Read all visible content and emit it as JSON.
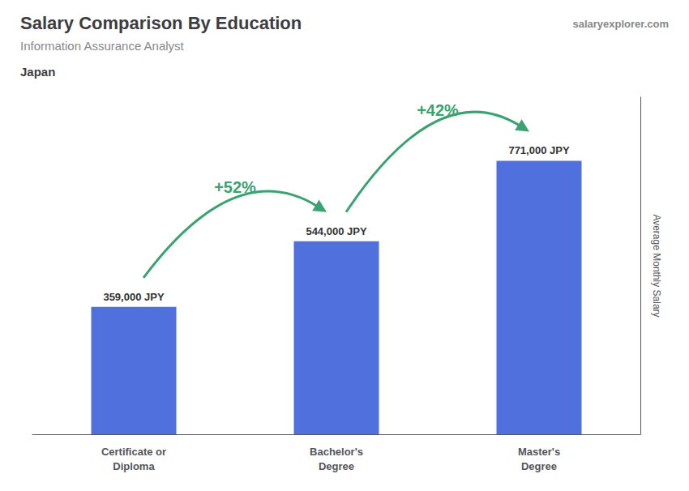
{
  "chart_data": {
    "type": "bar",
    "title": "Salary Comparison By Education",
    "subtitle": "Information Assurance Analyst",
    "country": "Japan",
    "watermark": "salaryexplorer.com",
    "ylabel": "Average Monthly Salary",
    "categories": [
      "Certificate or\nDiploma",
      "Bachelor's\nDegree",
      "Master's\nDegree"
    ],
    "values": [
      359000,
      544000,
      771000
    ],
    "value_labels": [
      "359,000 JPY",
      "544,000 JPY",
      "771,000 JPY"
    ],
    "data_labels": true,
    "annotations": [
      "+52%",
      "+42%"
    ],
    "ylim": [
      0,
      950000
    ],
    "tick_labels": "x",
    "grid": false
  }
}
